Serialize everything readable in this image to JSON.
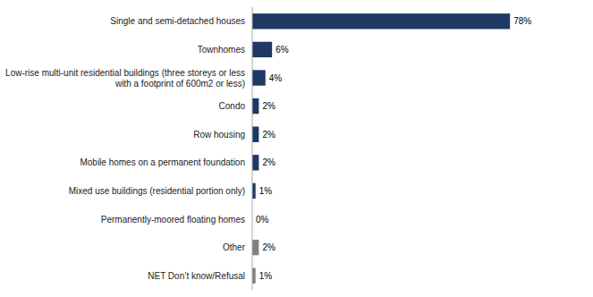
{
  "chart_data": {
    "type": "bar",
    "orientation": "horizontal",
    "categories": [
      "Single and semi-detached houses",
      "Townhomes",
      "Low-rise multi-unit residential buildings (three storeys or less\nwith a footprint of 600m2 or less)",
      "Condo",
      "Row housing",
      "Mobile homes on a permanent foundation",
      "Mixed use buildings (residential portion only)",
      "Permanently-moored floating homes",
      "Other",
      "NET Don’t know/Refusal"
    ],
    "values": [
      78,
      6,
      4,
      2,
      2,
      2,
      1,
      0,
      2,
      1
    ],
    "value_labels": [
      "78%",
      "6%",
      "4%",
      "2%",
      "2%",
      "2%",
      "1%",
      "0%",
      "2%",
      "1%"
    ],
    "colors": [
      "#1f3864",
      "#1f3864",
      "#1f3864",
      "#1f3864",
      "#1f3864",
      "#1f3864",
      "#1f3864",
      "#1f3864",
      "#808080",
      "#808080"
    ],
    "xlim": [
      0,
      95
    ],
    "data_labels": true,
    "tick_labels": "y",
    "grid": false
  }
}
